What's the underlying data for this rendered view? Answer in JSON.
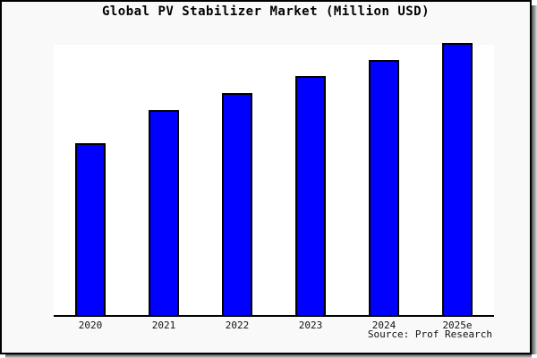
{
  "title": "Global PV Stabilizer Market (Million USD)",
  "source_note": "Source: Prof Research",
  "frame": {
    "background": "#f9f9f9",
    "plot_background": "#ffffff",
    "border_color": "#000000",
    "shadow_color": "#4f4f4f"
  },
  "chart_data": {
    "type": "bar",
    "title": "Global PV Stabilizer Market (Million USD)",
    "categories": [
      "2020",
      "2021",
      "2022",
      "2023",
      "2024",
      "2025e"
    ],
    "values": [
      62.9,
      75.2,
      81.5,
      87.7,
      93.7,
      100
    ],
    "note": "No y-axis ticks or value labels shown; values estimated as percent of tallest bar",
    "xlabel": "",
    "ylabel": "",
    "ylim": [
      0,
      100
    ],
    "grid": false,
    "legend": null,
    "bar_color": "#0000ff",
    "bar_border_color": "#000000",
    "axis_color": "#000000",
    "annotations": [
      "Source: Prof Research"
    ]
  }
}
